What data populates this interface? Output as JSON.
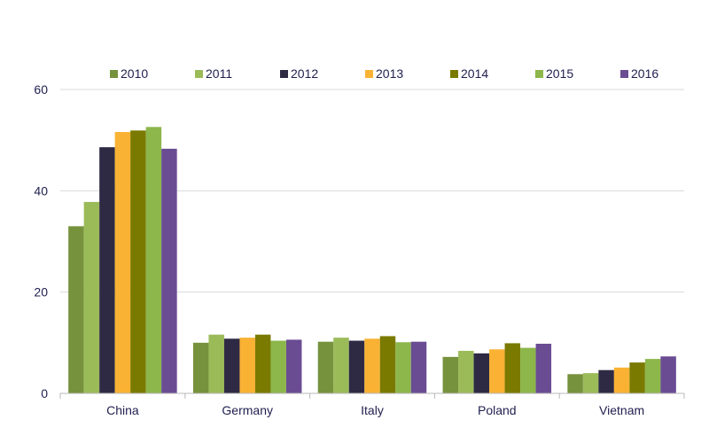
{
  "chart_data": {
    "type": "bar",
    "title": "",
    "xlabel": "",
    "ylabel": "",
    "ylim": [
      0,
      60
    ],
    "y_ticks": [
      0,
      20,
      40,
      60
    ],
    "grid": true,
    "legend_position": "top",
    "categories": [
      "China",
      "Germany",
      "Italy",
      "Poland",
      "Vietnam"
    ],
    "series": [
      {
        "name": "2010",
        "color": "#76923c",
        "values": [
          33.0,
          10.0,
          10.2,
          7.2,
          3.8
        ]
      },
      {
        "name": "2011",
        "color": "#9bbb59",
        "values": [
          37.8,
          11.6,
          11.0,
          8.4,
          4.0
        ]
      },
      {
        "name": "2012",
        "color": "#2e2a44",
        "values": [
          48.6,
          10.8,
          10.4,
          7.9,
          4.6
        ]
      },
      {
        "name": "2013",
        "color": "#f9b233",
        "values": [
          51.6,
          11.0,
          10.8,
          8.7,
          5.1
        ]
      },
      {
        "name": "2014",
        "color": "#7a7a00",
        "values": [
          51.9,
          11.6,
          11.3,
          9.9,
          6.1
        ]
      },
      {
        "name": "2015",
        "color": "#8db64b",
        "values": [
          52.6,
          10.4,
          10.1,
          9.0,
          6.8
        ]
      },
      {
        "name": "2016",
        "color": "#6a4c93",
        "values": [
          48.3,
          10.6,
          10.2,
          9.8,
          7.3
        ]
      }
    ]
  }
}
